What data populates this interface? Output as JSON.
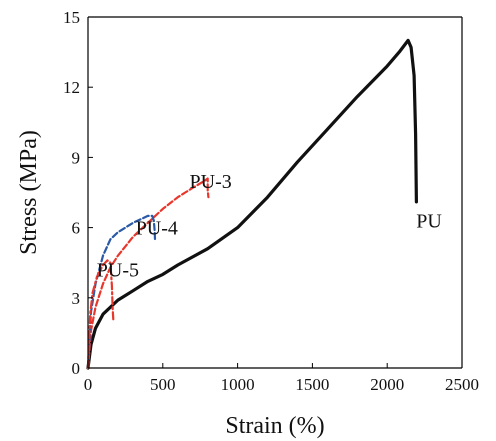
{
  "chart_data": {
    "type": "line",
    "xlabel": "Strain (%)",
    "ylabel": "Stress (MPa)",
    "xlim": [
      0,
      2500
    ],
    "ylim": [
      0,
      15
    ],
    "xticks": [
      0,
      500,
      1000,
      1500,
      2000,
      2500
    ],
    "yticks": [
      0,
      3,
      6,
      9,
      12,
      15
    ],
    "xtick_labels": [
      "0",
      "500",
      "1000",
      "1500",
      "2000",
      "2500"
    ],
    "ytick_labels": [
      "0",
      "3",
      "6",
      "9",
      "12",
      "15"
    ],
    "grid": false,
    "legend": "none",
    "series": [
      {
        "name": "PU",
        "color": "#111111",
        "style": "solid",
        "points": [
          [
            0,
            0
          ],
          [
            20,
            1.0
          ],
          [
            50,
            1.7
          ],
          [
            100,
            2.3
          ],
          [
            200,
            2.9
          ],
          [
            300,
            3.3
          ],
          [
            400,
            3.7
          ],
          [
            500,
            4.0
          ],
          [
            600,
            4.4
          ],
          [
            800,
            5.1
          ],
          [
            1000,
            6.0
          ],
          [
            1200,
            7.3
          ],
          [
            1400,
            8.8
          ],
          [
            1600,
            10.2
          ],
          [
            1800,
            11.6
          ],
          [
            2000,
            12.9
          ],
          [
            2080,
            13.5
          ],
          [
            2140,
            14.0
          ],
          [
            2160,
            13.7
          ],
          [
            2180,
            12.5
          ],
          [
            2190,
            10.0
          ],
          [
            2195,
            7.1
          ]
        ]
      },
      {
        "name": "PU-3",
        "color": "#e8372c",
        "style": "dashed",
        "points": [
          [
            0,
            0
          ],
          [
            20,
            1.6
          ],
          [
            50,
            2.6
          ],
          [
            100,
            3.6
          ],
          [
            150,
            4.3
          ],
          [
            200,
            4.8
          ],
          [
            300,
            5.6
          ],
          [
            400,
            6.2
          ],
          [
            500,
            6.8
          ],
          [
            600,
            7.3
          ],
          [
            700,
            7.7
          ],
          [
            780,
            8.0
          ],
          [
            800,
            8.1
          ],
          [
            800,
            7.6
          ],
          [
            805,
            7.3
          ]
        ]
      },
      {
        "name": "PU-4",
        "color": "#2a5aa6",
        "style": "dashed",
        "points": [
          [
            0,
            0
          ],
          [
            20,
            2.4
          ],
          [
            50,
            3.6
          ],
          [
            100,
            4.8
          ],
          [
            150,
            5.5
          ],
          [
            200,
            5.8
          ],
          [
            250,
            6.0
          ],
          [
            300,
            6.2
          ],
          [
            350,
            6.35
          ],
          [
            400,
            6.5
          ],
          [
            430,
            6.5
          ],
          [
            440,
            6.3
          ],
          [
            445,
            5.9
          ],
          [
            448,
            5.5
          ]
        ]
      },
      {
        "name": "PU-5",
        "color": "#e8372c",
        "style": "dashdot",
        "points": [
          [
            0,
            0
          ],
          [
            15,
            2.3
          ],
          [
            30,
            3.2
          ],
          [
            60,
            3.9
          ],
          [
            100,
            4.4
          ],
          [
            130,
            4.6
          ],
          [
            150,
            4.5
          ],
          [
            160,
            3.5
          ],
          [
            165,
            2.5
          ],
          [
            170,
            2.0
          ]
        ]
      }
    ],
    "annotations": [
      {
        "text": "PU",
        "x": 2280,
        "y": 6.3
      },
      {
        "text": "PU-3",
        "x": 820,
        "y": 8.0
      },
      {
        "text": "PU-4",
        "x": 460,
        "y": 6.0
      },
      {
        "text": "PU-5",
        "x": 200,
        "y": 4.2
      }
    ]
  }
}
